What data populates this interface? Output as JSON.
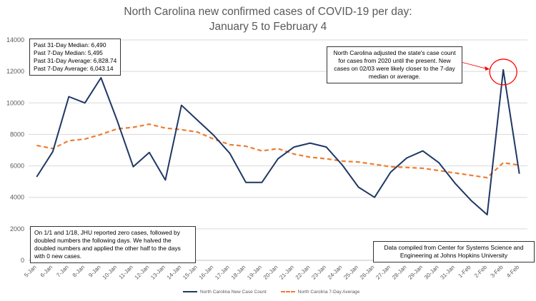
{
  "title_lines": [
    "North Carolina new confirmed cases of COVID-19 per day:",
    "January 5 to February 4"
  ],
  "stats_box": {
    "lines": [
      "Past 31-Day Median: 6,490",
      "Past 7-Day Median: 5,495",
      "Past 31-Day Average: 6,828.74",
      "Past 7-Day Average: 6,043.14"
    ]
  },
  "adjust_note": {
    "text": "North Carolina adjusted the state's case count for cases from 2020 until the present. New cases on 02/03 were likely closer to the 7-day median or average."
  },
  "zero_note": {
    "text": "On 1/1 and 1/18, JHU reported zero cases, followed by doubled numbers the following days. We halved the doubled numbers and applied the other half to the days with 0 new cases."
  },
  "source_note": {
    "text": "Data compiled from Center for Systems Science and Engineering at Johns Hopkins University"
  },
  "colors": {
    "cases_line": "#1f3864",
    "avg_line": "#ed7d31",
    "highlight_circle": "#ff0000",
    "gridline": "#d9d9d9"
  },
  "chart_data": {
    "type": "line",
    "categories": [
      "5-Jan",
      "6-Jan",
      "7-Jan",
      "8-Jan",
      "9-Jan",
      "10-Jan",
      "11-Jan",
      "12-Jan",
      "13-Jan",
      "14-Jan",
      "15-Jan",
      "16-Jan",
      "17-Jan",
      "18-Jan",
      "19-Jan",
      "20-Jan",
      "21-Jan",
      "22-Jan",
      "23-Jan",
      "24-Jan",
      "25-Jan",
      "26-Jan",
      "27-Jan",
      "28-Jan",
      "29-Jan",
      "30-Jan",
      "31-Jan",
      "1-Feb",
      "2-Feb",
      "3-Feb",
      "4-Feb"
    ],
    "series": [
      {
        "name": "North Carolina New Case Count",
        "style": "solid",
        "values": [
          5300,
          6900,
          10400,
          10000,
          11600,
          8900,
          5950,
          6850,
          5100,
          9850,
          8900,
          7950,
          6800,
          4950,
          4950,
          6450,
          7200,
          7450,
          7200,
          6050,
          4650,
          4000,
          5600,
          6500,
          6950,
          6200,
          4900,
          3800,
          2900,
          12100,
          5500
        ]
      },
      {
        "name": "North Carolina 7-Day Average",
        "style": "dashed",
        "values": [
          7300,
          7100,
          7600,
          7700,
          8000,
          8350,
          8450,
          8650,
          8400,
          8300,
          8150,
          7700,
          7350,
          7250,
          6950,
          7100,
          6750,
          6550,
          6450,
          6300,
          6250,
          6100,
          5950,
          5900,
          5850,
          5700,
          5550,
          5400,
          5250,
          6200,
          6050
        ]
      }
    ],
    "y_ticks": [
      0,
      2000,
      4000,
      6000,
      8000,
      10000,
      12000,
      14000
    ],
    "ylim": [
      0,
      14000
    ],
    "grid": true,
    "legend_position": "bottom",
    "highlight_category": "3-Feb"
  }
}
